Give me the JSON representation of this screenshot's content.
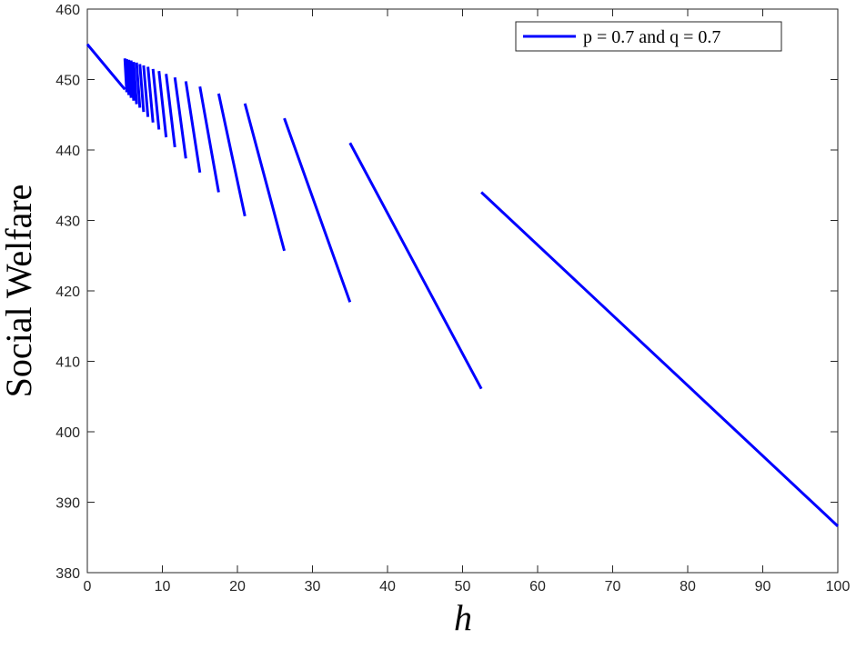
{
  "chart_data": {
    "type": "line",
    "xlabel": "h",
    "ylabel": "Social Welfare",
    "x": [
      0,
      5,
      null,
      5,
      5.25,
      null,
      5.25,
      5.526,
      null,
      5.526,
      5.833,
      null,
      5.833,
      6.176,
      null,
      6.176,
      6.5625,
      null,
      6.5625,
      7,
      null,
      7,
      7.5,
      null,
      7.5,
      8.077,
      null,
      8.077,
      8.75,
      null,
      8.75,
      9.545,
      null,
      9.545,
      10.5,
      null,
      10.5,
      11.667,
      null,
      11.667,
      13.125,
      null,
      13.125,
      15,
      null,
      15,
      17.5,
      null,
      17.5,
      21,
      null,
      21,
      26.25,
      null,
      26.25,
      35,
      null,
      35,
      52.5,
      null,
      52.5,
      100
    ],
    "series": [
      {
        "name": "p = 0.7 and q = 0.7",
        "color": "#0000ff",
        "values": [
          455,
          448.6,
          null,
          453.0,
          448.2,
          null,
          452.9,
          447.8,
          null,
          452.8,
          447.4,
          null,
          452.7,
          447.0,
          null,
          452.5,
          446.5,
          null,
          452.4,
          446.0,
          null,
          452.2,
          445.4,
          null,
          452.0,
          444.7,
          null,
          451.8,
          443.9,
          null,
          451.5,
          442.9,
          null,
          451.2,
          441.8,
          null,
          450.8,
          440.4,
          null,
          450.3,
          438.8,
          null,
          449.75,
          436.8,
          null,
          449.0,
          434.0,
          null,
          448.0,
          430.6,
          null,
          446.6,
          425.7,
          null,
          444.5,
          418.4,
          null,
          441.0,
          406.1,
          null,
          434.0,
          386.6
        ]
      }
    ],
    "xlim": [
      0,
      100
    ],
    "xticks": [
      0,
      10,
      20,
      30,
      40,
      50,
      60,
      70,
      80,
      90,
      100
    ],
    "ylim": [
      380,
      460
    ],
    "yticks": [
      380,
      390,
      400,
      410,
      420,
      430,
      440,
      450,
      460
    ],
    "legend": "upper right"
  }
}
